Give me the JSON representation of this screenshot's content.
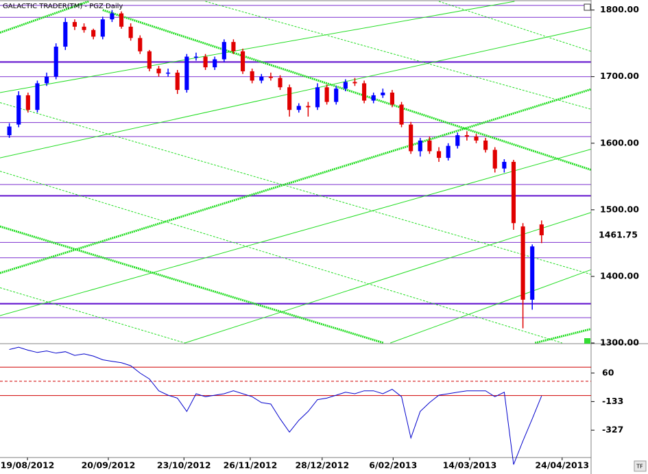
{
  "chart_data": {
    "type": "candlestick",
    "title": "GALACTIC TRADER(TM) - PGZ Daily",
    "button": "TF",
    "up_color": "#0000ff",
    "down_color": "#e00000",
    "xlim": [
      -1,
      62.3
    ],
    "xticks": [
      {
        "value": 1.94,
        "label": "19/08/2012"
      },
      {
        "value": 10.6,
        "label": "20/09/2012"
      },
      {
        "value": 18.7,
        "label": "23/10/2012"
      },
      {
        "value": 25.8,
        "label": "26/11/2012"
      },
      {
        "value": 33.5,
        "label": "28/12/2012"
      },
      {
        "value": 41.1,
        "label": "6/02/2013"
      },
      {
        "value": 49.3,
        "label": "14/03/2013"
      },
      {
        "value": 59.2,
        "label": "24/04/2013"
      }
    ],
    "ylim": [
      1300,
      1813
    ],
    "yticks": [
      {
        "value": 1800,
        "label": "1800.00"
      },
      {
        "value": 1700,
        "label": "1700.00"
      },
      {
        "value": 1600,
        "label": "1600.00"
      },
      {
        "value": 1500,
        "label": "1500.00"
      },
      {
        "value": 1400,
        "label": "1400.00"
      },
      {
        "value": 1300,
        "label": "1300.00"
      }
    ],
    "open": [
      1612,
      1628,
      1672,
      1650,
      1690,
      1700,
      1745,
      1782,
      1775,
      1770,
      1760,
      1786,
      1795,
      1775,
      1758,
      1738,
      1712,
      1705,
      1706,
      1680,
      1730,
      1730,
      1714,
      1726,
      1752,
      1738,
      1708,
      1694,
      1700,
      1698,
      1684,
      1650,
      1656,
      1654,
      1684,
      1662,
      1682,
      1692,
      1690,
      1664,
      1672,
      1676,
      1658,
      1628,
      1588,
      1604,
      1588,
      1578,
      1596,
      1612,
      1610,
      1604,
      1590,
      1562,
      1572,
      1475,
      1365,
      1478
    ],
    "close": [
      1625,
      1672,
      1650,
      1690,
      1700,
      1745,
      1782,
      1775,
      1770,
      1760,
      1786,
      1795,
      1775,
      1758,
      1738,
      1712,
      1705,
      1706,
      1680,
      1730,
      1730,
      1714,
      1726,
      1752,
      1738,
      1708,
      1694,
      1700,
      1698,
      1684,
      1650,
      1656,
      1654,
      1684,
      1662,
      1682,
      1692,
      1690,
      1664,
      1672,
      1676,
      1658,
      1628,
      1588,
      1604,
      1588,
      1578,
      1596,
      1612,
      1610,
      1604,
      1590,
      1562,
      1572,
      1480,
      1365,
      1445,
      1461.75
    ],
    "high": [
      1630,
      1678,
      1676,
      1694,
      1706,
      1750,
      1788,
      1786,
      1780,
      1772,
      1790,
      1800,
      1798,
      1780,
      1762,
      1740,
      1716,
      1712,
      1710,
      1734,
      1736,
      1734,
      1730,
      1756,
      1756,
      1742,
      1712,
      1704,
      1706,
      1702,
      1688,
      1660,
      1662,
      1690,
      1688,
      1686,
      1696,
      1698,
      1694,
      1676,
      1682,
      1680,
      1662,
      1632,
      1608,
      1610,
      1594,
      1600,
      1616,
      1618,
      1614,
      1608,
      1594,
      1576,
      1575,
      1480,
      1448,
      1484
    ],
    "low": [
      1608,
      1624,
      1646,
      1646,
      1686,
      1696,
      1740,
      1770,
      1766,
      1756,
      1756,
      1782,
      1772,
      1754,
      1734,
      1708,
      1700,
      1700,
      1674,
      1676,
      1724,
      1710,
      1710,
      1722,
      1734,
      1704,
      1690,
      1690,
      1694,
      1680,
      1640,
      1646,
      1640,
      1650,
      1658,
      1658,
      1678,
      1686,
      1660,
      1660,
      1668,
      1654,
      1624,
      1584,
      1580,
      1584,
      1572,
      1574,
      1592,
      1604,
      1600,
      1586,
      1556,
      1556,
      1470,
      1322,
      1350,
      1450
    ],
    "price_label": 1461.75,
    "major_levels": [
      1722,
      1521,
      1359
    ],
    "minor_levels": [
      1807,
      1789,
      1700,
      1631,
      1610,
      1538,
      1451,
      1428,
      1338
    ],
    "trend_lines": [
      {
        "from": [
          -1,
          1405
        ],
        "to": [
          62.3,
          1681
        ],
        "style": "thick"
      },
      {
        "from": [
          10.0,
          1800
        ],
        "to": [
          62.3,
          1560
        ],
        "style": "thick"
      },
      {
        "from": [
          -1,
          1475
        ],
        "to": [
          40.1,
          1300
        ],
        "style": "thick"
      },
      {
        "from": [
          56.3,
          1300
        ],
        "to": [
          62.3,
          1321
        ],
        "style": "thick"
      },
      {
        "from": [
          -1,
          1766
        ],
        "to": [
          8.5,
          1813
        ],
        "style": "thick"
      },
      {
        "from": [
          -1,
          1676
        ],
        "to": [
          54.1,
          1813
        ],
        "style": "thin"
      },
      {
        "from": [
          -1,
          1578
        ],
        "to": [
          62.3,
          1774
        ],
        "style": "thin"
      },
      {
        "from": [
          -1,
          1341
        ],
        "to": [
          62.3,
          1591
        ],
        "style": "thin"
      },
      {
        "from": [
          18.8,
          1300
        ],
        "to": [
          62.3,
          1496
        ],
        "style": "thin"
      },
      {
        "from": [
          40.8,
          1300
        ],
        "to": [
          62.3,
          1410
        ],
        "style": "thin"
      },
      {
        "from": [
          -1,
          1661
        ],
        "to": [
          62.3,
          1403
        ],
        "style": "dashed"
      },
      {
        "from": [
          -1,
          1558
        ],
        "to": [
          59.2,
          1300
        ],
        "style": "dashed"
      },
      {
        "from": [
          -1,
          1383
        ],
        "to": [
          18.8,
          1300
        ],
        "style": "dashed"
      },
      {
        "from": [
          21.0,
          1813
        ],
        "to": [
          62.3,
          1651
        ],
        "style": "dashed"
      },
      {
        "from": [
          46.0,
          1813
        ],
        "to": [
          62.3,
          1738
        ],
        "style": "dashed"
      }
    ],
    "oscillator": {
      "color": "#0000cc",
      "ylim": [
        -610,
        250
      ],
      "yticks": [
        60,
        -133,
        -327
      ],
      "levels": [
        100,
        5,
        -92
      ],
      "values": [
        220,
        235,
        215,
        200,
        210,
        195,
        205,
        180,
        190,
        175,
        150,
        140,
        130,
        110,
        60,
        20,
        -60,
        -90,
        -110,
        -200,
        -80,
        -100,
        -90,
        -80,
        -60,
        -80,
        -100,
        -140,
        -150,
        -250,
        -340,
        -260,
        -200,
        -120,
        -110,
        -90,
        -70,
        -80,
        -60,
        -60,
        -80,
        -50,
        -100,
        -380,
        -200,
        -140,
        -90,
        -80,
        -70,
        -60,
        -60,
        -60,
        -100,
        -70,
        -560,
        -400,
        -250,
        -95
      ]
    }
  }
}
